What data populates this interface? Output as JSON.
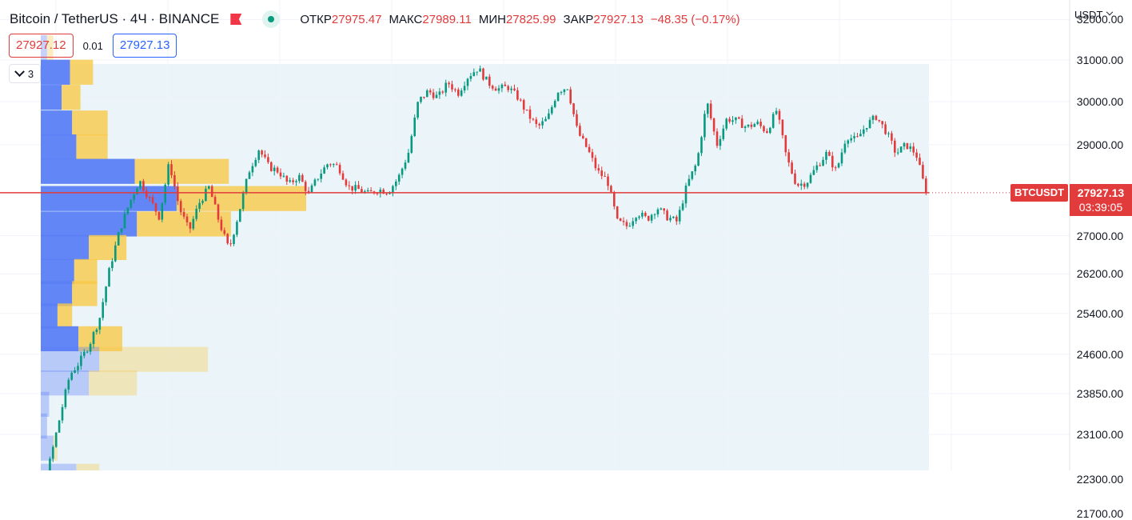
{
  "header": {
    "symbol": "Bitcoin / TetherUS · 4Ч · BINANCE",
    "labels": {
      "open": "ОТКР",
      "high": "МАКС",
      "low": "МИН",
      "close": "ЗАКР"
    },
    "values": {
      "open": "27975.47",
      "high": "27989.11",
      "low": "27825.99",
      "close": "27927.13"
    },
    "change": "−48.35 (−0.17%)",
    "sell_price": "27927.12",
    "spread": "0.01",
    "buy_price": "27927.13",
    "indicators_count": "3",
    "currency": "USDT"
  },
  "last_price": {
    "symbol": "BTCUSDT",
    "price": "27927.13",
    "countdown": "03:39:05",
    "value": 27927.13
  },
  "colors": {
    "up": "#089981",
    "down": "#e23b3b",
    "vp_up": "#5b7ff5",
    "vp_down": "#f7c948",
    "range_bg": "#eaf4f9"
  },
  "chart_data": {
    "type": "candlestick",
    "timeframe": "4Ч",
    "price_axis": {
      "labels": [
        "32000.00",
        "31000.00",
        "30000.00",
        "29000.00",
        "27000.00",
        "26200.00",
        "25400.00",
        "24600.00",
        "23850.00",
        "23100.00",
        "22300.00",
        "21700.00"
      ],
      "scale": "log",
      "range": [
        21600,
        32200
      ]
    },
    "grid": true,
    "volume_profile": {
      "levels": [
        {
          "price": 31300,
          "up": 3,
          "down": 3
        },
        {
          "price": 30700,
          "up": 14,
          "down": 11
        },
        {
          "price": 30100,
          "up": 10,
          "down": 9
        },
        {
          "price": 29500,
          "up": 15,
          "down": 17
        },
        {
          "price": 28950,
          "up": 17,
          "down": 15
        },
        {
          "price": 28400,
          "up": 45,
          "down": 45
        },
        {
          "price": 27800,
          "up": 65,
          "down": 62
        },
        {
          "price": 27250,
          "up": 46,
          "down": 45
        },
        {
          "price": 26750,
          "up": 23,
          "down": 18
        },
        {
          "price": 26250,
          "up": 16,
          "down": 11
        },
        {
          "price": 25800,
          "up": 15,
          "down": 12
        },
        {
          "price": 25350,
          "up": 8,
          "down": 7
        },
        {
          "price": 24900,
          "up": 18,
          "down": 21
        },
        {
          "price": 24500,
          "up": 28,
          "down": 52
        },
        {
          "price": 24050,
          "up": 23,
          "down": 23
        },
        {
          "price": 23650,
          "up": 4,
          "down": 0
        },
        {
          "price": 23250,
          "up": 3,
          "down": 0
        },
        {
          "price": 22850,
          "up": 6,
          "down": 2
        },
        {
          "price": 22350,
          "up": 17,
          "down": 11
        },
        {
          "price": 21950,
          "up": 5,
          "down": 3
        }
      ]
    },
    "price_path": [
      21950,
      21800,
      21700,
      21650,
      21900,
      22600,
      23400,
      24200,
      24450,
      24800,
      25300,
      26300,
      27100,
      27700,
      28200,
      27800,
      27400,
      28600,
      27600,
      27100,
      27700,
      28050,
      27300,
      26700,
      27500,
      28400,
      28900,
      28500,
      28400,
      28100,
      28300,
      27900,
      28300,
      28600,
      28500,
      28050,
      28000,
      27900,
      28000,
      27950,
      28250,
      28800,
      30000,
      30250,
      30100,
      30450,
      30200,
      30600,
      30800,
      30450,
      30300,
      30350,
      30100,
      29700,
      29400,
      29600,
      30250,
      30350,
      29300,
      28900,
      28400,
      28200,
      27300,
      27200,
      27500,
      27350,
      27600,
      27400,
      27300,
      28100,
      28600,
      30000,
      29000,
      29600,
      29550,
      29400,
      29500,
      29300,
      29800,
      28700,
      28100,
      28150,
      28500,
      28800,
      28400,
      29200,
      29100,
      29450,
      29650,
      29300,
      28800,
      29000,
      28800,
      27927
    ]
  }
}
